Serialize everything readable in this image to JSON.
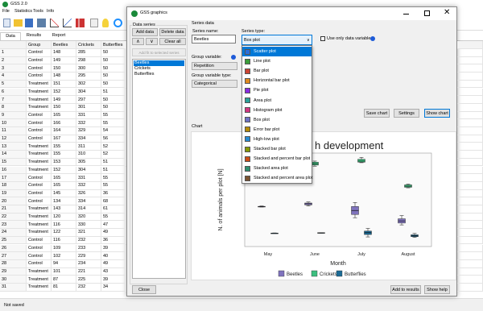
{
  "main_window": {
    "title": "GSS 2.0",
    "menu": [
      "File",
      "Statistics",
      "Tools",
      "Info"
    ],
    "tabs": [
      "Data",
      "Results",
      "Report"
    ],
    "columns": [
      "Group",
      "Beetles",
      "Crickets",
      "Butterflies"
    ],
    "rows": [
      [
        1,
        "Control",
        148,
        285,
        50
      ],
      [
        2,
        "Control",
        149,
        298,
        50
      ],
      [
        3,
        "Control",
        150,
        300,
        50
      ],
      [
        4,
        "Control",
        148,
        295,
        50
      ],
      [
        5,
        "Treatment",
        151,
        302,
        50
      ],
      [
        6,
        "Treatment",
        152,
        304,
        51
      ],
      [
        7,
        "Treatment",
        149,
        297,
        50
      ],
      [
        8,
        "Treatment",
        150,
        301,
        50
      ],
      [
        9,
        "Control",
        165,
        331,
        55
      ],
      [
        10,
        "Control",
        166,
        332,
        55
      ],
      [
        11,
        "Control",
        164,
        329,
        54
      ],
      [
        12,
        "Control",
        167,
        334,
        56
      ],
      [
        13,
        "Treatment",
        155,
        311,
        52
      ],
      [
        14,
        "Treatment",
        155,
        310,
        52
      ],
      [
        15,
        "Treatment",
        153,
        305,
        51
      ],
      [
        16,
        "Treatment",
        152,
        304,
        51
      ],
      [
        17,
        "Control",
        165,
        331,
        55
      ],
      [
        18,
        "Control",
        165,
        332,
        55
      ],
      [
        19,
        "Control",
        145,
        326,
        36
      ],
      [
        20,
        "Control",
        134,
        334,
        68
      ],
      [
        21,
        "Treatment",
        143,
        314,
        61
      ],
      [
        22,
        "Treatment",
        120,
        320,
        55
      ],
      [
        23,
        "Treatment",
        116,
        330,
        47
      ],
      [
        24,
        "Treatment",
        122,
        321,
        49
      ],
      [
        25,
        "Control",
        116,
        232,
        36
      ],
      [
        26,
        "Control",
        109,
        233,
        39
      ],
      [
        27,
        "Control",
        102,
        229,
        40
      ],
      [
        28,
        "Control",
        94,
        234,
        49
      ],
      [
        29,
        "Treatment",
        101,
        221,
        43
      ],
      [
        30,
        "Treatment",
        87,
        225,
        39
      ],
      [
        31,
        "Treatment",
        81,
        232,
        34
      ]
    ],
    "status": "Not saved"
  },
  "dialog": {
    "title": "GSS graphics",
    "data_series": {
      "heading": "Data series",
      "buttons": [
        "Add data",
        "Delete data",
        "Clear all"
      ],
      "fit_button": "Add fit to selected series",
      "items": [
        "Beetles",
        "Crickets",
        "Butterflies"
      ],
      "close": "Close"
    },
    "series_data": {
      "heading": "Series data",
      "name_label": "Series name:",
      "name": "Beetles",
      "type_label": "Series type:",
      "type": "Box plot",
      "type_options": [
        "Scatter plot",
        "Line plot",
        "Bar plot",
        "Horizontal bar plot",
        "Pie plot",
        "Area plot",
        "Histogram plot",
        "Box plot",
        "Error bar plot",
        "High-low plot",
        "Stacked bar plot",
        "Stacked and percent bar plot",
        "Stacked area plot",
        "Stacked and percent area plot"
      ],
      "only_data_label": "Use only data variable",
      "group_label": "Group variable:",
      "group": "Repetition",
      "group_type_label": "Group variable type:",
      "group_type": "Categorical"
    },
    "buttons": [
      "Save chart",
      "Settings",
      "Show chart"
    ],
    "chart_heading": "Chart",
    "bottom_buttons": [
      "Add to results",
      "Show help"
    ]
  },
  "chart_data": {
    "type": "box",
    "title": "h development",
    "ylabel": "N. of animals per plot [N]",
    "xlabel": "Month",
    "categories": [
      "May",
      "June",
      "July",
      "August"
    ],
    "ylim": [
      0,
      350
    ],
    "series": [
      {
        "name": "Beetles",
        "color": "#7f73bd",
        "values": [
          {
            "min": 148,
            "q1": 148.5,
            "median": 149.5,
            "q3": 150.5,
            "max": 152
          },
          {
            "min": 152,
            "q1": 156,
            "median": 160,
            "q3": 163,
            "max": 167
          },
          {
            "min": 108,
            "q1": 120,
            "median": 135,
            "q3": 150,
            "max": 165
          },
          {
            "min": 81,
            "q1": 88,
            "median": 96,
            "q3": 104,
            "max": 116
          }
        ]
      },
      {
        "name": "Crickets",
        "color": "#3dbf7f",
        "values": [
          null,
          {
            "min": 301,
            "q1": 305,
            "median": 310,
            "q3": 316,
            "max": 320
          },
          {
            "min": 314,
            "q1": 316,
            "median": 320,
            "q3": 327,
            "max": 334
          },
          {
            "min": 220,
            "q1": 222,
            "median": 226,
            "q3": 231,
            "max": 234
          }
        ]
      },
      {
        "name": "Butterflies",
        "color": "#1c6b96",
        "values": [
          {
            "min": 49,
            "q1": 49.5,
            "median": 50,
            "q3": 50.5,
            "max": 51
          },
          {
            "min": 50,
            "q1": 50.5,
            "median": 51,
            "q3": 52,
            "max": 52
          },
          {
            "min": 36,
            "q1": 45,
            "median": 52,
            "q3": 58,
            "max": 68
          },
          {
            "min": 34,
            "q1": 37,
            "median": 40,
            "q3": 44,
            "max": 49
          }
        ]
      }
    ]
  }
}
